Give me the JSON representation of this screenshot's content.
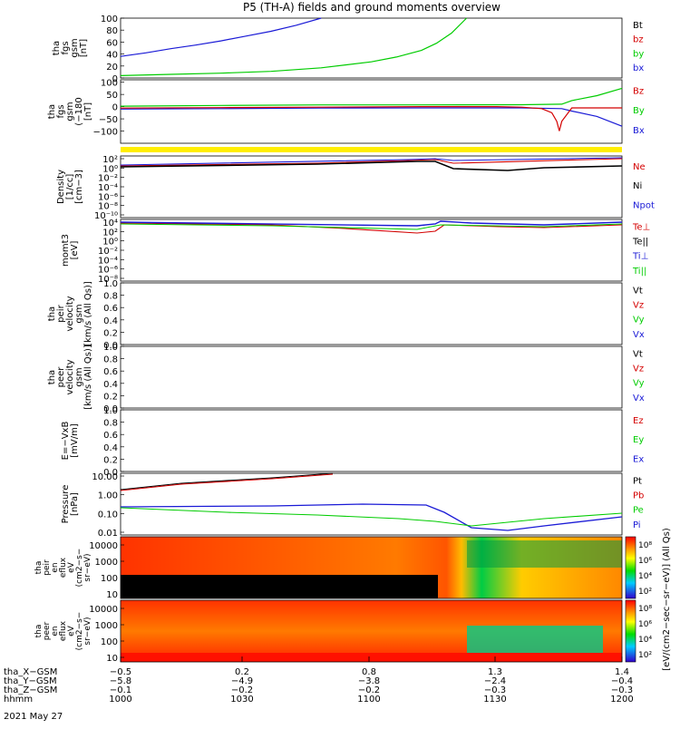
{
  "title": "P5 (TH-A) fields and ground moments overview",
  "date_label": "2021 May 27",
  "colors": {
    "black": "#000000",
    "red": "#d40000",
    "green": "#00cc00",
    "blue": "#1a1ad6",
    "yellow": "#ffee00"
  },
  "chart_data": [
    {
      "type": "line",
      "name": "fgs-gsm-total",
      "ylabel_lines": [
        "tha",
        "fgs",
        "gsm",
        "[nT]"
      ],
      "ylim": [
        0,
        100
      ],
      "ytick_labels": [
        "100",
        "80",
        "60",
        "40",
        "20",
        "0"
      ],
      "ytick_values": [
        100,
        80,
        60,
        40,
        20,
        0
      ],
      "legend": [
        "Bt",
        "bz",
        "by",
        "bx"
      ],
      "legend_colors": [
        "black",
        "red",
        "green",
        "blue"
      ],
      "series": [
        {
          "name": "bx",
          "color": "blue",
          "x": [
            0,
            0.05,
            0.1,
            0.15,
            0.2,
            0.25,
            0.3,
            0.35,
            0.4
          ],
          "y": [
            36,
            42,
            49,
            55,
            62,
            70,
            78,
            88,
            100
          ]
        },
        {
          "name": "by",
          "color": "green",
          "x": [
            0,
            0.1,
            0.2,
            0.3,
            0.4,
            0.5,
            0.55,
            0.6,
            0.63,
            0.66,
            0.69
          ],
          "y": [
            4,
            6,
            8,
            11,
            17,
            27,
            35,
            46,
            58,
            75,
            100
          ]
        }
      ]
    },
    {
      "type": "line",
      "name": "fgs-gsm-dsl",
      "ylabel_lines": [
        "tha",
        "fgs",
        "gsm",
        "(−180",
        "[nT]"
      ],
      "ylim": [
        -150,
        110
      ],
      "ytick_labels": [
        "100",
        "50",
        "0",
        "−50",
        "−100"
      ],
      "ytick_values": [
        100,
        50,
        0,
        -50,
        -100
      ],
      "legend": [
        "Bz",
        "By",
        "Bx"
      ],
      "legend_colors": [
        "red",
        "green",
        "blue"
      ],
      "series": [
        {
          "name": "By",
          "color": "green",
          "x": [
            0,
            0.2,
            0.4,
            0.6,
            0.8,
            0.88,
            0.9,
            0.95,
            1.0
          ],
          "y": [
            2,
            5,
            7,
            7,
            8,
            10,
            25,
            45,
            75
          ]
        },
        {
          "name": "Bx",
          "color": "blue",
          "x": [
            0,
            0.2,
            0.4,
            0.6,
            0.8,
            0.88,
            0.9,
            0.95,
            1.0
          ],
          "y": [
            -10,
            -8,
            -6,
            -5,
            -5,
            -8,
            -18,
            -40,
            -80
          ]
        },
        {
          "name": "Bz",
          "color": "red",
          "x": [
            0,
            0.2,
            0.4,
            0.6,
            0.75,
            0.8,
            0.84,
            0.86,
            0.87,
            0.875,
            0.88,
            0.9,
            1.0
          ],
          "y": [
            -6,
            -4,
            -2,
            0,
            0,
            -2,
            -8,
            -25,
            -60,
            -100,
            -60,
            -5,
            -5
          ]
        }
      ]
    },
    {
      "type": "line",
      "name": "density",
      "ylabel_lines": [
        "Density",
        "[1/cc]",
        "[cm−3]"
      ],
      "ytick_labels": [
        "10²",
        "10⁰",
        "10⁻²",
        "10⁻⁴",
        "10⁻⁶",
        "10⁻⁸",
        "10⁻¹⁰"
      ],
      "legend": [
        "Ne",
        "Ni",
        "Npot"
      ],
      "legend_colors": [
        "red",
        "black",
        "blue"
      ]
    },
    {
      "type": "line",
      "name": "moments",
      "ylabel_lines": [
        "momt3",
        "[eV]"
      ],
      "ytick_labels": [
        "10⁴",
        "10²",
        "10⁰",
        "10⁻²",
        "10⁻⁴",
        "10⁻⁶",
        "10⁻⁸"
      ],
      "legend": [
        "Te⊥",
        "Te||",
        "Ti⊥",
        "Ti||"
      ],
      "legend_colors": [
        "red",
        "black",
        "blue",
        "green"
      ]
    },
    {
      "type": "line",
      "name": "peir-velocity",
      "ylabel_lines": [
        "tha",
        "peir",
        "velocity",
        "gsm",
        "[km/s (All Qs)]"
      ],
      "ylim": [
        0,
        1
      ],
      "ytick_labels": [
        "1.0",
        "0.8",
        "0.6",
        "0.4",
        "0.2",
        "0.0"
      ],
      "ytick_values": [
        1.0,
        0.8,
        0.6,
        0.4,
        0.2,
        0.0
      ],
      "legend": [
        "Vt",
        "Vz",
        "Vy",
        "Vx"
      ],
      "legend_colors": [
        "black",
        "red",
        "green",
        "blue"
      ]
    },
    {
      "type": "line",
      "name": "peer-velocity",
      "ylabel_lines": [
        "tha",
        "peer",
        "velocity",
        "gsm",
        "[km/s (All Qs)]"
      ],
      "ylim": [
        0,
        1
      ],
      "ytick_labels": [
        "1.0",
        "0.8",
        "0.6",
        "0.4",
        "0.2",
        "0.0"
      ],
      "ytick_values": [
        1.0,
        0.8,
        0.6,
        0.4,
        0.2,
        0.0
      ],
      "legend": [
        "Vt",
        "Vz",
        "Vy",
        "Vx"
      ],
      "legend_colors": [
        "black",
        "red",
        "green",
        "blue"
      ]
    },
    {
      "type": "line",
      "name": "electric-field",
      "ylabel_lines": [
        "E=−VxB",
        "[mV/m]"
      ],
      "ylim": [
        0,
        1
      ],
      "ytick_labels": [
        "1.0",
        "0.8",
        "0.6",
        "0.4",
        "0.2",
        "0.0"
      ],
      "ytick_values": [
        1.0,
        0.8,
        0.6,
        0.4,
        0.2,
        0.0
      ],
      "legend": [
        "Ez",
        "Ey",
        "Ex"
      ],
      "legend_colors": [
        "red",
        "green",
        "blue"
      ]
    },
    {
      "type": "line",
      "name": "pressure",
      "ylabel_lines": [
        "Pressure",
        "[nPa]"
      ],
      "ytick_labels": [
        "10.00",
        "1.00",
        "0.10",
        "0.01"
      ],
      "legend": [
        "Pt",
        "Pb",
        "Pe",
        "Pi"
      ],
      "legend_colors": [
        "black",
        "red",
        "green",
        "blue"
      ]
    },
    {
      "type": "heatmap",
      "name": "peir-spectrogram",
      "ylabel_lines": [
        "tha",
        "peir",
        "en",
        "eflux",
        "eV",
        "(cm2−s−",
        "sr−eV)"
      ],
      "ytick_labels": [
        "10000",
        "1000",
        "100",
        "10"
      ]
    },
    {
      "type": "heatmap",
      "name": "peer-spectrogram",
      "ylabel_lines": [
        "tha",
        "peer",
        "en",
        "eflux",
        "eV",
        "(cm2−s−",
        "sr−eV)"
      ],
      "ytick_labels": [
        "10000",
        "1000",
        "100",
        "10"
      ]
    }
  ],
  "colorbar": {
    "label": "[eV/(cm2−sec−sr−eV)] (All Qs)",
    "upper_ticks": [
      "10⁸",
      "10⁶",
      "10⁴",
      "10²"
    ],
    "lower_ticks": [
      "10⁸",
      "10⁶",
      "10⁴",
      "10²"
    ]
  },
  "x_axis": {
    "rows": [
      {
        "label": "tha_X−GSM",
        "values": [
          "−0.5",
          "0.2",
          "0.8",
          "1.3",
          "1.4"
        ]
      },
      {
        "label": "tha_Y−GSM",
        "values": [
          "−5.8",
          "−4.9",
          "−3.8",
          "−2.4",
          "−0.4"
        ]
      },
      {
        "label": "tha_Z−GSM",
        "values": [
          "−0.1",
          "−0.2",
          "−0.2",
          "−0.3",
          "−0.3"
        ]
      },
      {
        "label": "hhmm",
        "values": [
          "1000",
          "1030",
          "1100",
          "1130",
          "1200"
        ]
      }
    ]
  }
}
